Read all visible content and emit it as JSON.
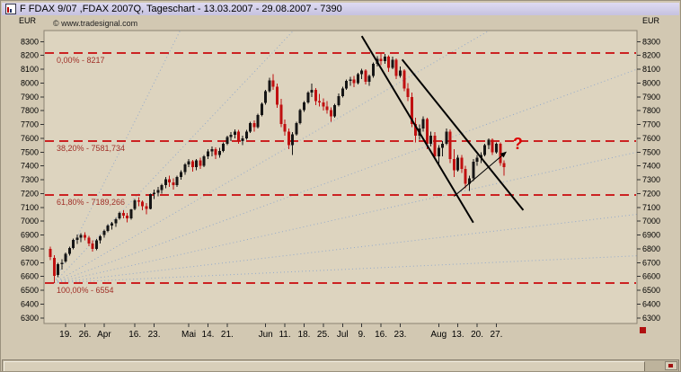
{
  "window": {
    "title": "F FDAX 9/07 ,FDAX 2007Q, Tageschart - 13.03.2007 - 29.08.2007 - 7390"
  },
  "chart_data": {
    "type": "candlestick",
    "title": "F FDAX 9/07 ,FDAX 2007Q, Tageschart - 13.03.2007 - 29.08.2007 - 7390",
    "copyright": "© www.tradesignal.com",
    "unit": "EUR",
    "last_price": 7390,
    "ylim": [
      6260,
      8380
    ],
    "y_ticks": [
      8300,
      8200,
      8100,
      8000,
      7900,
      7800,
      7700,
      7600,
      7500,
      7400,
      7300,
      7200,
      7100,
      7000,
      6900,
      6800,
      6700,
      6600,
      6500,
      6400,
      6300
    ],
    "x_ticks": [
      {
        "i": 4,
        "t": "19."
      },
      {
        "i": 9,
        "t": "26."
      },
      {
        "i": 14,
        "t": "Apr"
      },
      {
        "i": 22,
        "t": "16."
      },
      {
        "i": 27,
        "t": "23."
      },
      {
        "i": 36,
        "t": "Mai"
      },
      {
        "i": 41,
        "t": "14."
      },
      {
        "i": 46,
        "t": "21."
      },
      {
        "i": 56,
        "t": "Jun"
      },
      {
        "i": 61,
        "t": "11."
      },
      {
        "i": 66,
        "t": "18."
      },
      {
        "i": 71,
        "t": "25."
      },
      {
        "i": 76,
        "t": "Jul"
      },
      {
        "i": 81,
        "t": "9."
      },
      {
        "i": 86,
        "t": "16."
      },
      {
        "i": 91,
        "t": "23."
      },
      {
        "i": 101,
        "t": "Aug"
      },
      {
        "i": 106,
        "t": "13."
      },
      {
        "i": 111,
        "t": "20."
      },
      {
        "i": 116,
        "t": "27."
      }
    ],
    "fib_levels": [
      {
        "label": "0,00% - 8217",
        "value": 8217
      },
      {
        "label": "38,20% - 7581,734",
        "value": 7581.734
      },
      {
        "label": "61,80% - 7189,266",
        "value": 7189.266
      },
      {
        "label": "100,00% - 6554",
        "value": 6554
      }
    ],
    "fan": {
      "origin": {
        "index": 1,
        "price": 6554
      },
      "end_prices_at_right": [
        15000,
        11000,
        9000,
        8100,
        7500,
        7050,
        6750
      ]
    },
    "trend_lines": [
      {
        "from": [
          81,
          8340
        ],
        "to": [
          110,
          6990
        ]
      },
      {
        "from": [
          91.5,
          8170
        ],
        "to": [
          123,
          7080
        ]
      }
    ],
    "arrow": {
      "from": [
        105,
        7180
      ],
      "to": [
        118.5,
        7500
      ]
    },
    "question_mark": {
      "label": "?",
      "index": 120.3,
      "price": 7520
    },
    "colors": {
      "background": "#d2c8b2",
      "plot_bg": "#ddd4bf",
      "up": "#151515",
      "down": "#c01010",
      "fib": "#cc2222",
      "fib_label": "#a03028",
      "fan": "#93aacb",
      "trend": "#000000",
      "annotation": "#dd0000",
      "frame": "#8a8272"
    },
    "candles": [
      [
        "13.03",
        6800,
        6815,
        6720,
        6740
      ],
      [
        "14.03",
        6735,
        6755,
        6554,
        6605
      ],
      [
        "15.03",
        6610,
        6700,
        6595,
        6690
      ],
      [
        "16.03",
        6690,
        6725,
        6650,
        6700
      ],
      [
        "19.03",
        6710,
        6775,
        6700,
        6765
      ],
      [
        "20.03",
        6765,
        6815,
        6750,
        6805
      ],
      [
        "21.03",
        6805,
        6875,
        6795,
        6865
      ],
      [
        "22.03",
        6865,
        6905,
        6835,
        6880
      ],
      [
        "23.03",
        6880,
        6915,
        6850,
        6900
      ],
      [
        "26.03",
        6900,
        6920,
        6860,
        6880
      ],
      [
        "27.03",
        6880,
        6895,
        6820,
        6840
      ],
      [
        "28.03",
        6840,
        6860,
        6780,
        6800
      ],
      [
        "29.03",
        6800,
        6870,
        6790,
        6860
      ],
      [
        "30.03",
        6860,
        6900,
        6840,
        6890
      ],
      [
        "02.04",
        6900,
        6940,
        6880,
        6930
      ],
      [
        "03.04",
        6930,
        6980,
        6920,
        6970
      ],
      [
        "04.04",
        6970,
        6995,
        6940,
        6985
      ],
      [
        "05.04",
        6985,
        7025,
        6960,
        7015
      ],
      [
        "10.04",
        7020,
        7070,
        7010,
        7060
      ],
      [
        "11.04",
        7060,
        7080,
        7020,
        7040
      ],
      [
        "12.04",
        7040,
        7060,
        6990,
        7020
      ],
      [
        "13.04",
        7020,
        7090,
        7010,
        7085
      ],
      [
        "16.04",
        7090,
        7160,
        7080,
        7150
      ],
      [
        "17.04",
        7150,
        7175,
        7110,
        7140
      ],
      [
        "18.04",
        7140,
        7150,
        7080,
        7110
      ],
      [
        "19.04",
        7110,
        7130,
        7050,
        7090
      ],
      [
        "20.04",
        7090,
        7200,
        7085,
        7195
      ],
      [
        "23.04",
        7195,
        7230,
        7160,
        7205
      ],
      [
        "24.04",
        7205,
        7250,
        7180,
        7225
      ],
      [
        "25.04",
        7225,
        7270,
        7200,
        7260
      ],
      [
        "26.04",
        7260,
        7320,
        7240,
        7305
      ],
      [
        "27.04",
        7305,
        7330,
        7250,
        7280
      ],
      [
        "30.04",
        7280,
        7310,
        7230,
        7260
      ],
      [
        "02.05",
        7260,
        7330,
        7250,
        7320
      ],
      [
        "03.05",
        7320,
        7370,
        7300,
        7355
      ],
      [
        "04.05",
        7355,
        7420,
        7335,
        7410
      ],
      [
        "07.05",
        7410,
        7450,
        7390,
        7435
      ],
      [
        "08.05",
        7435,
        7445,
        7360,
        7390
      ],
      [
        "09.05",
        7390,
        7450,
        7370,
        7440
      ],
      [
        "10.05",
        7440,
        7460,
        7380,
        7400
      ],
      [
        "11.05",
        7400,
        7480,
        7390,
        7470
      ],
      [
        "14.05",
        7470,
        7520,
        7450,
        7505
      ],
      [
        "15.05",
        7505,
        7540,
        7470,
        7520
      ],
      [
        "16.05",
        7520,
        7535,
        7450,
        7480
      ],
      [
        "17.05",
        7480,
        7530,
        7460,
        7510
      ],
      [
        "18.05",
        7510,
        7570,
        7500,
        7560
      ],
      [
        "21.05",
        7560,
        7620,
        7550,
        7610
      ],
      [
        "22.05",
        7610,
        7645,
        7580,
        7625
      ],
      [
        "23.05",
        7625,
        7665,
        7600,
        7650
      ],
      [
        "24.05",
        7650,
        7660,
        7560,
        7580
      ],
      [
        "25.05",
        7580,
        7620,
        7550,
        7600
      ],
      [
        "28.05",
        7600,
        7660,
        7590,
        7650
      ],
      [
        "29.05",
        7650,
        7720,
        7640,
        7710
      ],
      [
        "30.05",
        7710,
        7730,
        7650,
        7680
      ],
      [
        "31.05",
        7680,
        7780,
        7670,
        7770
      ],
      [
        "01.06",
        7770,
        7860,
        7760,
        7850
      ],
      [
        "04.06",
        7855,
        7950,
        7845,
        7940
      ],
      [
        "05.06",
        7940,
        8040,
        7930,
        8020
      ],
      [
        "06.06",
        8020,
        8065,
        7950,
        7975
      ],
      [
        "07.06",
        7975,
        7995,
        7820,
        7845
      ],
      [
        "08.06",
        7845,
        7885,
        7680,
        7705
      ],
      [
        "11.06",
        7705,
        7735,
        7620,
        7650
      ],
      [
        "12.06",
        7650,
        7670,
        7520,
        7550
      ],
      [
        "13.06",
        7550,
        7645,
        7480,
        7630
      ],
      [
        "14.06",
        7630,
        7720,
        7620,
        7710
      ],
      [
        "15.06",
        7710,
        7815,
        7700,
        7805
      ],
      [
        "18.06",
        7805,
        7870,
        7790,
        7860
      ],
      [
        "19.06",
        7860,
        7940,
        7850,
        7930
      ],
      [
        "20.06",
        7930,
        7995,
        7900,
        7950
      ],
      [
        "21.06",
        7950,
        7965,
        7840,
        7870
      ],
      [
        "22.06",
        7870,
        7920,
        7830,
        7860
      ],
      [
        "25.06",
        7860,
        7890,
        7800,
        7830
      ],
      [
        "26.06",
        7830,
        7870,
        7780,
        7805
      ],
      [
        "27.06",
        7805,
        7825,
        7720,
        7760
      ],
      [
        "28.06",
        7760,
        7850,
        7750,
        7840
      ],
      [
        "29.06",
        7840,
        7925,
        7830,
        7905
      ],
      [
        "02.07",
        7905,
        7975,
        7895,
        7960
      ],
      [
        "03.07",
        7960,
        8025,
        7950,
        8015
      ],
      [
        "04.07",
        8015,
        8045,
        7980,
        8025
      ],
      [
        "05.07",
        8025,
        8050,
        7970,
        8000
      ],
      [
        "06.07",
        8000,
        8075,
        7990,
        8065
      ],
      [
        "09.07",
        8065,
        8105,
        8030,
        8090
      ],
      [
        "10.07",
        8090,
        8100,
        7990,
        8010
      ],
      [
        "11.07",
        8010,
        8060,
        7980,
        8050
      ],
      [
        "12.07",
        8050,
        8150,
        8040,
        8140
      ],
      [
        "13.07",
        8140,
        8195,
        8120,
        8175
      ],
      [
        "16.07",
        8175,
        8217,
        8130,
        8160
      ],
      [
        "17.07",
        8160,
        8210,
        8140,
        8190
      ],
      [
        "18.07",
        8190,
        8200,
        8080,
        8110
      ],
      [
        "19.07",
        8110,
        8190,
        8100,
        8170
      ],
      [
        "20.07",
        8170,
        8180,
        8030,
        8050
      ],
      [
        "23.07",
        8050,
        8120,
        8040,
        8090
      ],
      [
        "24.07",
        8090,
        8100,
        7940,
        7960
      ],
      [
        "25.07",
        7960,
        8000,
        7870,
        7900
      ],
      [
        "26.07",
        7900,
        7930,
        7680,
        7705
      ],
      [
        "27.07",
        7705,
        7750,
        7570,
        7620
      ],
      [
        "30.07",
        7620,
        7700,
        7590,
        7670
      ],
      [
        "31.07",
        7670,
        7760,
        7650,
        7740
      ],
      [
        "01.08",
        7740,
        7750,
        7520,
        7560
      ],
      [
        "02.08",
        7560,
        7650,
        7540,
        7620
      ],
      [
        "03.08",
        7620,
        7645,
        7450,
        7470
      ],
      [
        "06.08",
        7470,
        7550,
        7400,
        7530
      ],
      [
        "07.08",
        7530,
        7580,
        7470,
        7560
      ],
      [
        "08.08",
        7560,
        7670,
        7550,
        7650
      ],
      [
        "09.08",
        7650,
        7665,
        7420,
        7450
      ],
      [
        "10.08",
        7450,
        7520,
        7320,
        7370
      ],
      [
        "13.08",
        7370,
        7480,
        7360,
        7460
      ],
      [
        "14.08",
        7460,
        7480,
        7350,
        7380
      ],
      [
        "15.08",
        7380,
        7400,
        7240,
        7270
      ],
      [
        "16.08",
        7270,
        7330,
        7220,
        7310
      ],
      [
        "17.08",
        7310,
        7450,
        7290,
        7430
      ],
      [
        "20.08",
        7430,
        7480,
        7400,
        7460
      ],
      [
        "21.08",
        7460,
        7500,
        7420,
        7480
      ],
      [
        "22.08",
        7480,
        7560,
        7470,
        7550
      ],
      [
        "23.08",
        7550,
        7600,
        7520,
        7590
      ],
      [
        "24.08",
        7590,
        7600,
        7480,
        7500
      ],
      [
        "27.08",
        7500,
        7570,
        7490,
        7560
      ],
      [
        "28.08",
        7560,
        7570,
        7400,
        7420
      ],
      [
        "29.08",
        7420,
        7440,
        7330,
        7390
      ]
    ]
  }
}
